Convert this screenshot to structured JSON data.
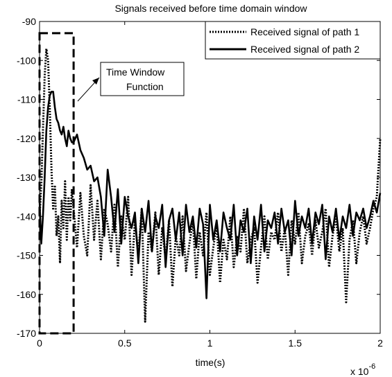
{
  "chart_data": {
    "type": "line",
    "title": "Signals received before time domain window",
    "xlabel": "time(s)",
    "ylabel": "",
    "x_exponent_base": "x 10",
    "x_exponent_power": "-6",
    "xlim": [
      0,
      2
    ],
    "ylim": [
      -170,
      -90
    ],
    "x_ticks": [
      0,
      0.5,
      1,
      1.5,
      2
    ],
    "x_tick_labels": [
      "0",
      "0.5",
      "1",
      "1.5",
      "2"
    ],
    "y_ticks": [
      -90,
      -100,
      -110,
      -120,
      -130,
      -140,
      -150,
      -160,
      -170
    ],
    "y_tick_labels": [
      "-90",
      "-100",
      "-110",
      "-120",
      "-130",
      "-140",
      "-150",
      "-160",
      "-170"
    ],
    "grid": false,
    "legend_position": "top-right",
    "series": [
      {
        "name": "Received signal of path 1",
        "style": "dotted",
        "x": [
          0,
          0.01,
          0.02,
          0.03,
          0.04,
          0.05,
          0.06,
          0.07,
          0.08,
          0.09,
          0.1,
          0.11,
          0.12,
          0.13,
          0.14,
          0.15,
          0.16,
          0.17,
          0.18,
          0.19,
          0.2,
          0.22,
          0.24,
          0.26,
          0.28,
          0.3,
          0.32,
          0.34,
          0.36,
          0.38,
          0.4,
          0.42,
          0.44,
          0.46,
          0.48,
          0.5,
          0.52,
          0.54,
          0.56,
          0.58,
          0.6,
          0.62,
          0.64,
          0.66,
          0.68,
          0.7,
          0.72,
          0.74,
          0.76,
          0.78,
          0.8,
          0.82,
          0.84,
          0.86,
          0.88,
          0.9,
          0.92,
          0.94,
          0.96,
          0.98,
          1.0,
          1.02,
          1.04,
          1.06,
          1.08,
          1.1,
          1.12,
          1.14,
          1.16,
          1.18,
          1.2,
          1.22,
          1.24,
          1.26,
          1.28,
          1.3,
          1.32,
          1.34,
          1.36,
          1.38,
          1.4,
          1.42,
          1.44,
          1.46,
          1.48,
          1.5,
          1.52,
          1.54,
          1.56,
          1.58,
          1.6,
          1.62,
          1.64,
          1.66,
          1.68,
          1.7,
          1.72,
          1.74,
          1.76,
          1.78,
          1.8,
          1.82,
          1.84,
          1.86,
          1.88,
          1.9,
          1.92,
          1.94,
          1.96,
          1.98,
          2.0
        ],
        "y": [
          -140,
          -132,
          -118,
          -104,
          -97,
          -100,
          -112,
          -128,
          -138,
          -132,
          -145,
          -140,
          -152,
          -136,
          -143,
          -131,
          -146,
          -135,
          -141,
          -133,
          -138,
          -148,
          -134,
          -145,
          -150,
          -132,
          -146,
          -136,
          -151,
          -138,
          -142,
          -149,
          -137,
          -153,
          -140,
          -146,
          -135,
          -155,
          -141,
          -150,
          -138,
          -167,
          -144,
          -149,
          -139,
          -155,
          -143,
          -151,
          -141,
          -158,
          -145,
          -150,
          -140,
          -154,
          -147,
          -141,
          -156,
          -144,
          -150,
          -139,
          -155,
          -148,
          -142,
          -157,
          -146,
          -151,
          -140,
          -153,
          -145,
          -149,
          -138,
          -152,
          -146,
          -143,
          -157,
          -148,
          -140,
          -151,
          -144,
          -146,
          -139,
          -149,
          -143,
          -155,
          -141,
          -147,
          -139,
          -152,
          -145,
          -142,
          -150,
          -141,
          -148,
          -144,
          -138,
          -153,
          -145,
          -140,
          -149,
          -143,
          -162,
          -146,
          -141,
          -152,
          -144,
          -140,
          -147,
          -143,
          -138,
          -135,
          -120
        ]
      },
      {
        "name": "Received signal of path 2",
        "style": "solid",
        "x": [
          0,
          0.01,
          0.02,
          0.03,
          0.04,
          0.05,
          0.06,
          0.07,
          0.08,
          0.09,
          0.1,
          0.11,
          0.12,
          0.13,
          0.14,
          0.15,
          0.16,
          0.17,
          0.18,
          0.19,
          0.2,
          0.22,
          0.24,
          0.26,
          0.28,
          0.3,
          0.32,
          0.34,
          0.36,
          0.38,
          0.4,
          0.42,
          0.44,
          0.46,
          0.48,
          0.5,
          0.52,
          0.54,
          0.56,
          0.58,
          0.6,
          0.62,
          0.64,
          0.66,
          0.68,
          0.7,
          0.72,
          0.74,
          0.76,
          0.78,
          0.8,
          0.82,
          0.84,
          0.86,
          0.88,
          0.9,
          0.92,
          0.94,
          0.96,
          0.98,
          1.0,
          1.02,
          1.04,
          1.06,
          1.08,
          1.1,
          1.12,
          1.14,
          1.16,
          1.18,
          1.2,
          1.22,
          1.24,
          1.26,
          1.28,
          1.3,
          1.32,
          1.34,
          1.36,
          1.38,
          1.4,
          1.42,
          1.44,
          1.46,
          1.48,
          1.5,
          1.52,
          1.54,
          1.56,
          1.58,
          1.6,
          1.62,
          1.64,
          1.66,
          1.68,
          1.7,
          1.72,
          1.74,
          1.76,
          1.78,
          1.8,
          1.82,
          1.84,
          1.86,
          1.88,
          1.9,
          1.92,
          1.94,
          1.96,
          1.98,
          2.0
        ],
        "y": [
          -136,
          -147,
          -140,
          -130,
          -118,
          -112,
          -109,
          -108,
          -108,
          -112,
          -115,
          -116,
          -118,
          -119,
          -117,
          -120,
          -122,
          -118,
          -120,
          -121,
          -121,
          -119,
          -123,
          -125,
          -128,
          -127,
          -131,
          -130,
          -135,
          -145,
          -128,
          -135,
          -144,
          -133,
          -147,
          -135,
          -140,
          -143,
          -139,
          -152,
          -138,
          -144,
          -136,
          -149,
          -140,
          -143,
          -137,
          -153,
          -141,
          -138,
          -146,
          -139,
          -150,
          -137,
          -144,
          -140,
          -148,
          -138,
          -142,
          -161,
          -137,
          -146,
          -141,
          -149,
          -139,
          -143,
          -146,
          -137,
          -150,
          -141,
          -144,
          -138,
          -152,
          -140,
          -146,
          -137,
          -149,
          -141,
          -143,
          -139,
          -147,
          -138,
          -144,
          -141,
          -150,
          -136,
          -145,
          -140,
          -143,
          -138,
          -147,
          -139,
          -142,
          -137,
          -151,
          -140,
          -144,
          -138,
          -146,
          -140,
          -143,
          -137,
          -145,
          -139,
          -141,
          -138,
          -143,
          -140,
          -136,
          -139,
          -134
        ]
      }
    ],
    "annotation": {
      "line1": "Time Window",
      "line2": "Function",
      "window_x": [
        0,
        0.2
      ],
      "window_y": [
        -170,
        -93
      ]
    }
  }
}
